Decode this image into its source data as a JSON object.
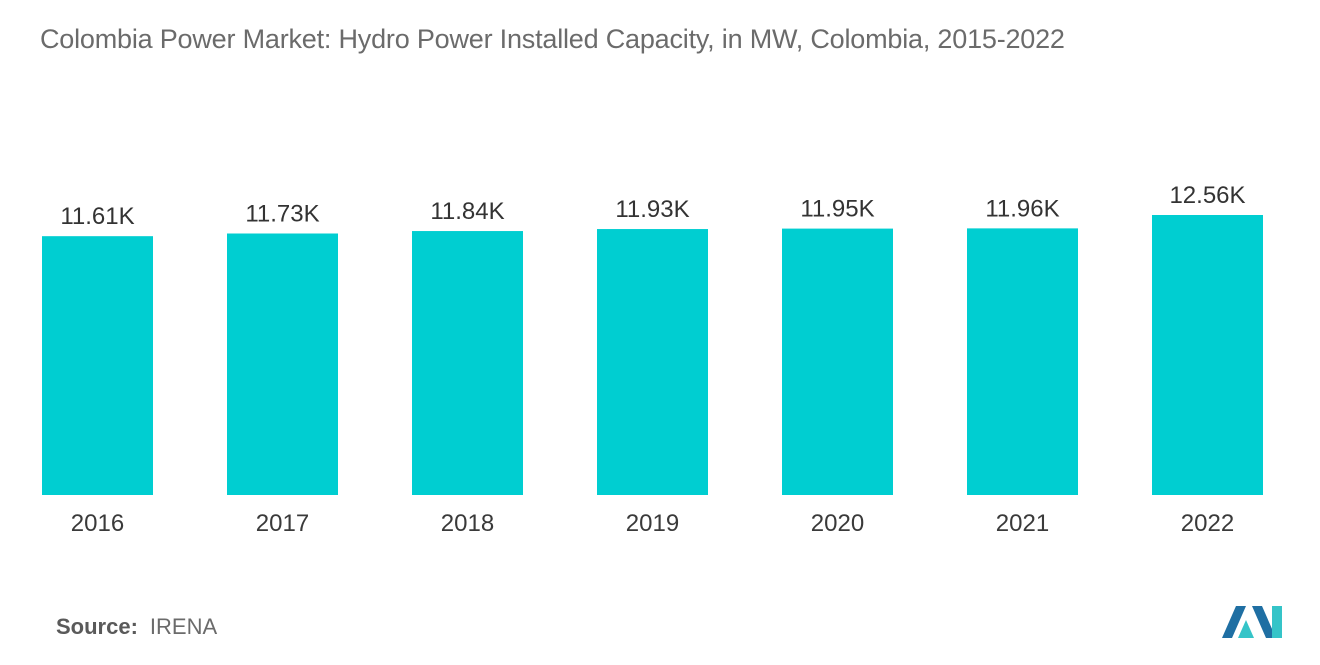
{
  "title": "Colombia Power Market: Hydro Power Installed Capacity, in MW, Colombia, 2015-2022",
  "source": {
    "label": "Source:",
    "value": "IRENA"
  },
  "logo": {
    "icon": "mordor-intelligence-logo-icon"
  },
  "colors": {
    "bar": "#00CED1",
    "logo_dark": "#1f6fa3",
    "logo_light": "#35c4c8"
  },
  "chart_data": {
    "type": "bar",
    "categories": [
      "2016",
      "2017",
      "2018",
      "2019",
      "2020",
      "2021",
      "2022"
    ],
    "values": [
      11610,
      11730,
      11840,
      11930,
      11950,
      11960,
      12560
    ],
    "data_labels": [
      "11.61K",
      "11.73K",
      "11.84K",
      "11.93K",
      "11.95K",
      "11.96K",
      "12.56K"
    ],
    "title": "Colombia Power Market: Hydro Power Installed Capacity, in MW, Colombia, 2015-2022",
    "xlabel": "",
    "ylabel": "",
    "ylim": [
      0,
      12560
    ],
    "grid": false,
    "legend": "none"
  }
}
